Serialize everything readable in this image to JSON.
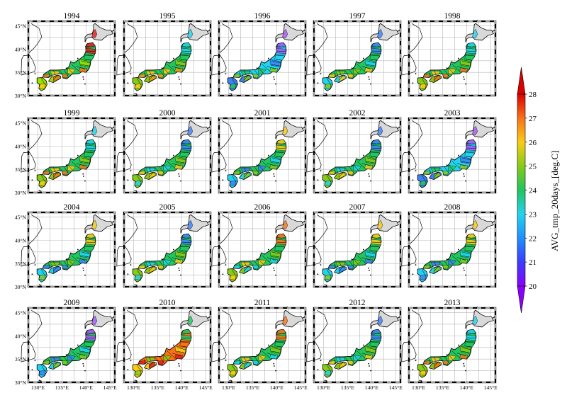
{
  "years": [
    "1994",
    "1995",
    "1996",
    "1997",
    "1998",
    "1999",
    "2000",
    "2001",
    "2002",
    "2003",
    "2004",
    "2005",
    "2006",
    "2007",
    "2008",
    "2009",
    "2010",
    "2011",
    "2012",
    "2013"
  ],
  "y_tick_labels": [
    "45°N",
    "40°N",
    "35°N",
    "30°N"
  ],
  "x_tick_labels": [
    "130°E",
    "135°E",
    "140°E",
    "145°E"
  ],
  "colorbar": {
    "title": "AVG_tmp_20days_[deg.C]",
    "ticks": [
      "20",
      "21",
      "22",
      "23",
      "24",
      "25",
      "26",
      "27",
      "28"
    ],
    "min": 20,
    "max": 28,
    "colors": [
      "#8a00ff",
      "#3a3cff",
      "#1e90ff",
      "#22d3ee",
      "#22c55e",
      "#84cc16",
      "#facc15",
      "#f97316",
      "#dc0000"
    ]
  },
  "panel_palette": {
    "1994": [
      "#22c55e",
      "#9ae000",
      "#facc15",
      "#f97316",
      "#e11d1d"
    ],
    "1995": [
      "#22c55e",
      "#84cc16",
      "#facc15",
      "#f59e0b",
      "#22d3ee"
    ],
    "1996": [
      "#22d3ee",
      "#3b82f6",
      "#22c55e",
      "#84cc16",
      "#a855f7"
    ],
    "1997": [
      "#22c55e",
      "#22d3ee",
      "#84cc16",
      "#facc15",
      "#3b82f6"
    ],
    "1998": [
      "#22c55e",
      "#84cc16",
      "#facc15",
      "#f97316",
      "#22d3ee"
    ],
    "1999": [
      "#22c55e",
      "#84cc16",
      "#facc15",
      "#f97316",
      "#22d3ee"
    ],
    "2000": [
      "#22c55e",
      "#84cc16",
      "#22d3ee",
      "#facc15",
      "#3b82f6"
    ],
    "2001": [
      "#22c55e",
      "#22d3ee",
      "#3b82f6",
      "#84cc16",
      "#facc15"
    ],
    "2002": [
      "#22c55e",
      "#84cc16",
      "#22d3ee",
      "#facc15",
      "#3b82f6"
    ],
    "2003": [
      "#22d3ee",
      "#3b82f6",
      "#22c55e",
      "#84cc16",
      "#a855f7"
    ],
    "2004": [
      "#22c55e",
      "#22d3ee",
      "#84cc16",
      "#3b82f6",
      "#facc15"
    ],
    "2005": [
      "#22c55e",
      "#84cc16",
      "#22d3ee",
      "#facc15",
      "#3b82f6"
    ],
    "2006": [
      "#22c55e",
      "#84cc16",
      "#facc15",
      "#22d3ee",
      "#f97316"
    ],
    "2007": [
      "#22c55e",
      "#22d3ee",
      "#84cc16",
      "#3b82f6",
      "#facc15"
    ],
    "2008": [
      "#22c55e",
      "#22d3ee",
      "#3b82f6",
      "#84cc16",
      "#facc15"
    ],
    "2009": [
      "#22c55e",
      "#22d3ee",
      "#3b82f6",
      "#84cc16",
      "#a855f7"
    ],
    "2010": [
      "#f97316",
      "#facc15",
      "#84cc16",
      "#e11d1d",
      "#22c55e"
    ],
    "2011": [
      "#22c55e",
      "#84cc16",
      "#facc15",
      "#22d3ee",
      "#f97316"
    ],
    "2012": [
      "#22c55e",
      "#84cc16",
      "#22d3ee",
      "#facc15",
      "#3b82f6"
    ],
    "2013": [
      "#22c55e",
      "#84cc16",
      "#facc15",
      "#f97316",
      "#22d3ee"
    ]
  }
}
